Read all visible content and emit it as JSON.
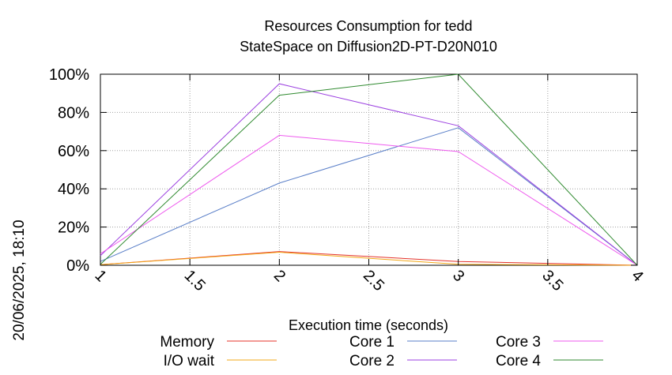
{
  "chart_data": {
    "type": "line",
    "title": "Resources Consumption for tedd",
    "subtitle": "StateSpace on Diffusion2D-PT-D20N010",
    "xlabel": "Execution time (seconds)",
    "ylabel": "",
    "timestamp": "20/06/2025, 18:10",
    "xlim": [
      1,
      4
    ],
    "ylim": [
      0,
      100
    ],
    "x_ticks": [
      {
        "value": 1,
        "label": "1"
      },
      {
        "value": 1.5,
        "label": "1.5"
      },
      {
        "value": 2,
        "label": "2"
      },
      {
        "value": 2.5,
        "label": "2.5"
      },
      {
        "value": 3,
        "label": "3"
      },
      {
        "value": 3.5,
        "label": "3.5"
      },
      {
        "value": 4,
        "label": "4"
      }
    ],
    "y_ticks": [
      {
        "value": 0,
        "label": "0%"
      },
      {
        "value": 20,
        "label": "20%"
      },
      {
        "value": 40,
        "label": "40%"
      },
      {
        "value": 60,
        "label": "60%"
      },
      {
        "value": 80,
        "label": "80%"
      },
      {
        "value": 100,
        "label": "100%"
      }
    ],
    "grid": true,
    "legend_position": "bottom",
    "series": [
      {
        "name": "Memory",
        "color": "#e4332b",
        "x": [
          1,
          2,
          3,
          4
        ],
        "y": [
          0.3,
          7.2,
          2.0,
          0
        ]
      },
      {
        "name": "I/O wait",
        "color": "#f2a817",
        "x": [
          1,
          2,
          3,
          4
        ],
        "y": [
          0.3,
          6.8,
          0.5,
          0
        ]
      },
      {
        "name": "Core 1",
        "color": "#5a7fc8",
        "x": [
          1,
          2,
          3,
          4
        ],
        "y": [
          2.0,
          43,
          72,
          0
        ]
      },
      {
        "name": "Core 2",
        "color": "#9b3fe0",
        "x": [
          1,
          2,
          3,
          4
        ],
        "y": [
          5.0,
          95,
          73,
          0
        ]
      },
      {
        "name": "Core 3",
        "color": "#ee5aee",
        "x": [
          1,
          2,
          3,
          4
        ],
        "y": [
          6.0,
          68,
          59.5,
          0
        ]
      },
      {
        "name": "Core 4",
        "color": "#2f8a2f",
        "x": [
          1,
          2,
          3,
          4
        ],
        "y": [
          0.5,
          89,
          100,
          0
        ]
      }
    ]
  }
}
